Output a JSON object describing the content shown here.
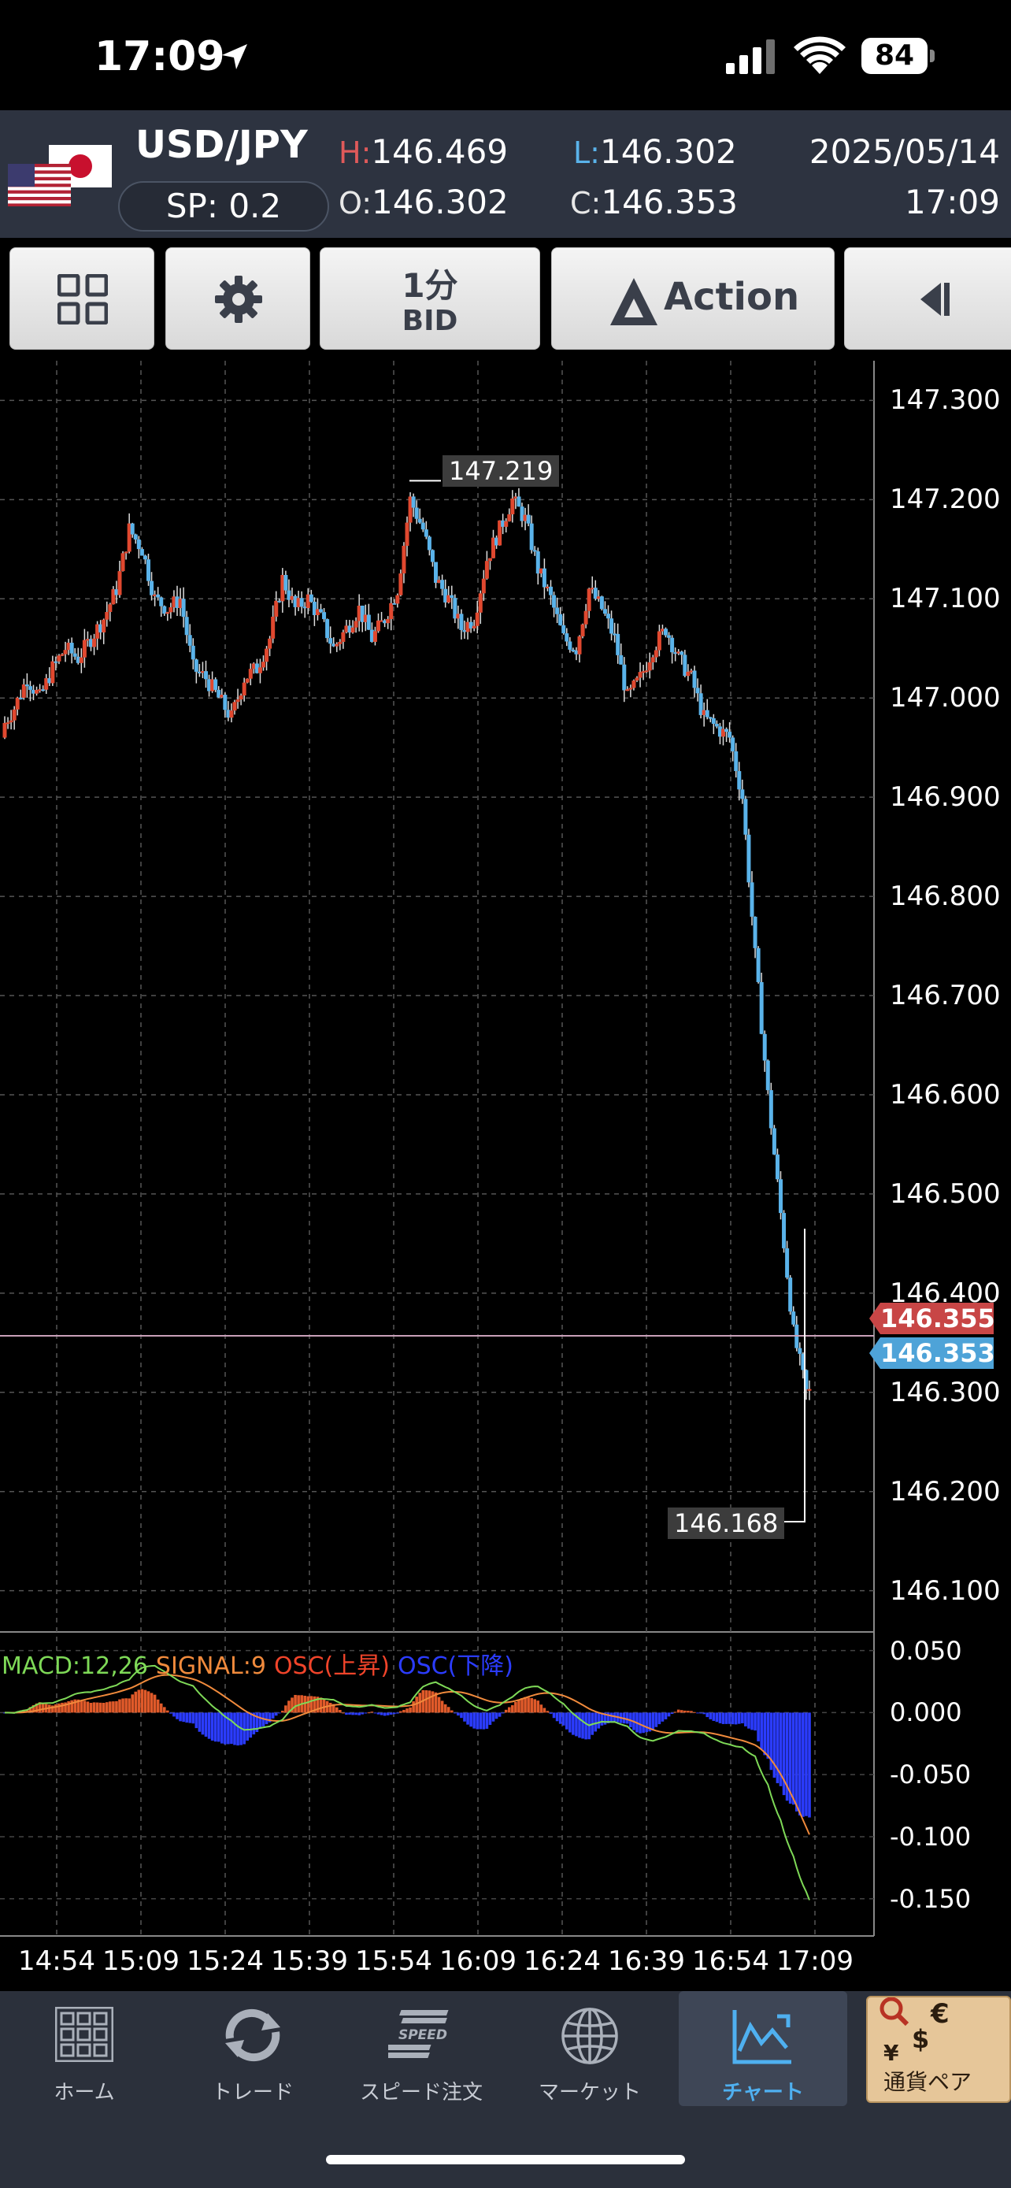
{
  "status_bar": {
    "time": "17:09",
    "battery": "84"
  },
  "quote": {
    "pair": "USD/JPY",
    "spread": "SP: 0.2",
    "high_key": "H:",
    "high": "146.469",
    "low_key": "L:",
    "low": "146.302",
    "open_key": "O:",
    "open": "146.302",
    "close_key": "C:",
    "close": "146.353",
    "date": "2025/05/14",
    "time": "17:09"
  },
  "toolbar": {
    "layout_icon": "grid-icon",
    "settings_icon": "gear-icon",
    "timeframe": "1分",
    "price_side": "BID",
    "action": "Action",
    "collapse_icon": "collapse-left-icon"
  },
  "price_tags": {
    "ask": "146.355",
    "bid": "146.353"
  },
  "markers": {
    "high": "147.219",
    "low": "146.168"
  },
  "macd": {
    "label_macd": "MACD:12,26",
    "label_signal": "SIGNAL:9",
    "label_osc_up": "OSC(上昇)",
    "label_osc_down": "OSC(下降)"
  },
  "colors": {
    "up_candle": "#e0482f",
    "down_candle": "#5ab3ea",
    "macd_line": "#7ed957",
    "signal_line": "#f08a3c",
    "osc_up": "#e05a2a",
    "osc_down": "#2b3cff",
    "tab_active": "#4fb0f0"
  },
  "chart_data": {
    "type": "candlestick",
    "y_ticks": [
      "147.300",
      "147.200",
      "147.100",
      "147.000",
      "146.900",
      "146.800",
      "146.700",
      "146.600",
      "146.500",
      "146.400",
      "146.300",
      "146.200",
      "146.100"
    ],
    "ylim": [
      146.06,
      147.34
    ],
    "x_ticks": [
      "14:54",
      "15:09",
      "15:24",
      "15:39",
      "15:54",
      "16:09",
      "16:24",
      "16:39",
      "16:54",
      "17:09"
    ],
    "close_series": [
      146.97,
      146.99,
      147.02,
      147.0,
      147.03,
      147.05,
      147.04,
      147.06,
      147.08,
      147.11,
      147.17,
      147.15,
      147.1,
      147.09,
      147.1,
      147.03,
      147.02,
      147.0,
      146.98,
      147.02,
      147.03,
      147.06,
      147.12,
      147.09,
      147.1,
      147.08,
      147.05,
      147.07,
      147.09,
      147.06,
      147.08,
      147.11,
      147.2,
      147.17,
      147.12,
      147.1,
      147.07,
      147.08,
      147.14,
      147.17,
      147.2,
      147.18,
      147.13,
      147.1,
      147.06,
      147.05,
      147.11,
      147.09,
      147.06,
      147.0,
      147.02,
      147.05,
      147.07,
      147.04,
      147.02,
      146.98,
      146.97,
      146.96,
      146.9,
      146.74,
      146.6,
      146.48,
      146.36,
      146.3
    ],
    "macd_ticks": [
      "0.050",
      "0.000",
      "-0.050",
      "-0.100",
      "-0.150"
    ],
    "macd_ylim": [
      -0.18,
      0.065
    ]
  },
  "tabs": [
    {
      "label": "ホーム",
      "icon": "home-grid-icon"
    },
    {
      "label": "トレード",
      "icon": "trade-arrows-icon"
    },
    {
      "label": "スピード注文",
      "icon": "speed-order-icon",
      "icon_text": "SPEED"
    },
    {
      "label": "マーケット",
      "icon": "globe-icon"
    },
    {
      "label": "チャート",
      "icon": "chart-icon"
    }
  ],
  "currency_tab": {
    "label": "通貨ペア",
    "icon": "currency-magnifier-icon"
  }
}
